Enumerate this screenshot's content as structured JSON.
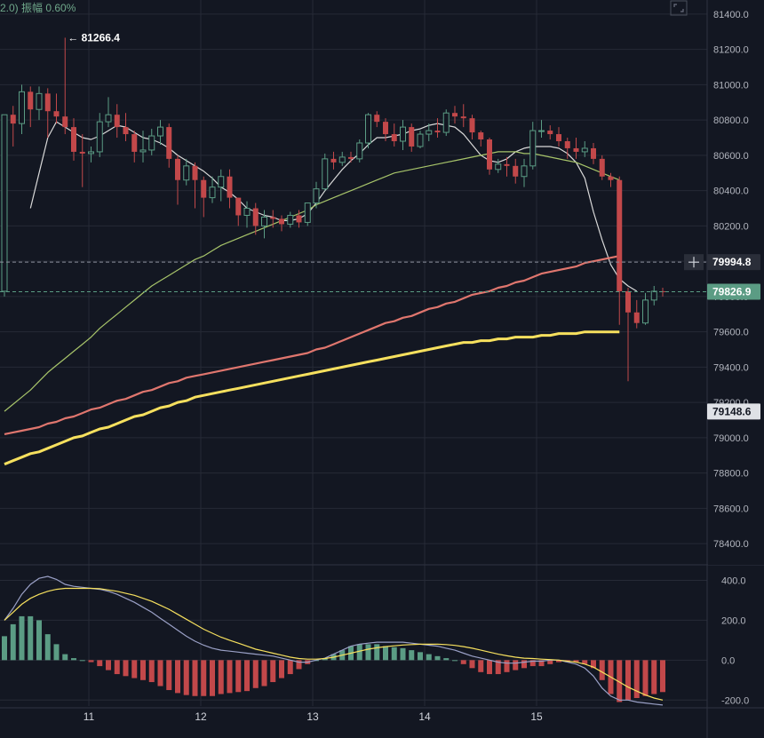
{
  "header": {
    "amplitude_text": "2.0)  振幅 0.60%"
  },
  "colors": {
    "background": "#131722",
    "grid": "#262a36",
    "up": "#5b9c84",
    "down": "#c2484a",
    "ma_white": "#d9d9d9",
    "ma_green": "#a7c46a",
    "ma_pink": "#e0766e",
    "ma_yellow": "#f6e05e",
    "price_tag_green": "#5b9c84",
    "price_tag_dark": "#2a2e39",
    "price_tag_light": "#dfe1e6"
  },
  "icons": {
    "fullscreen": "fullscreen-icon",
    "crosshair": "plus-icon"
  },
  "chart_data": [
    {
      "type": "candlestick",
      "title": "",
      "x_ticks": [
        "11",
        "12",
        "13",
        "14",
        "15"
      ],
      "y_ticks": [
        "81400.0",
        "81200.0",
        "81000.0",
        "80800.0",
        "80600.0",
        "80400.0",
        "80200.0",
        "80000.0",
        "79800.0",
        "79600.0",
        "79400.0",
        "79200.0",
        "79000.0",
        "78800.0",
        "78600.0",
        "78400.0"
      ],
      "ylim": [
        78280,
        81480
      ],
      "max_annotation": {
        "label": "← 81266.4",
        "value": 81266.4
      },
      "price_tags": [
        {
          "label": "79994.8",
          "value": 79994.8,
          "style": "crosshair"
        },
        {
          "label": "79826.9",
          "value": 79826.9,
          "style": "current"
        },
        {
          "label": "79148.6",
          "value": 79148.6,
          "style": "light"
        }
      ],
      "candles": [
        [
          79830,
          80830,
          80830,
          79800
        ],
        [
          80830,
          80780,
          80880,
          80650
        ],
        [
          80780,
          80960,
          81000,
          80720
        ],
        [
          80960,
          80860,
          80990,
          80760
        ],
        [
          80860,
          80950,
          80990,
          80800
        ],
        [
          80950,
          80850,
          80980,
          80700
        ],
        [
          80850,
          80820,
          80950,
          80780
        ],
        [
          80820,
          80760,
          81266.4,
          80720
        ],
        [
          80760,
          80620,
          80810,
          80570
        ],
        [
          80620,
          80610,
          80720,
          80420
        ],
        [
          80610,
          80620,
          80650,
          80560
        ],
        [
          80620,
          80790,
          80840,
          80590
        ],
        [
          80790,
          80830,
          80930,
          80760
        ],
        [
          80830,
          80760,
          80890,
          80700
        ],
        [
          80760,
          80720,
          80840,
          80680
        ],
        [
          80720,
          80620,
          80740,
          80560
        ],
        [
          80620,
          80630,
          80740,
          80560
        ],
        [
          80630,
          80710,
          80750,
          80600
        ],
        [
          80710,
          80760,
          80800,
          80660
        ],
        [
          80760,
          80580,
          80780,
          80530
        ],
        [
          80580,
          80460,
          80600,
          80320
        ],
        [
          80460,
          80540,
          80580,
          80430
        ],
        [
          80540,
          80460,
          80560,
          80300
        ],
        [
          80460,
          80360,
          80480,
          80250
        ],
        [
          80360,
          80420,
          80480,
          80330
        ],
        [
          80420,
          80480,
          80520,
          80340
        ],
        [
          80480,
          80360,
          80520,
          80300
        ],
        [
          80360,
          80260,
          80360,
          80200
        ],
        [
          80260,
          80300,
          80340,
          80190
        ],
        [
          80300,
          80200,
          80330,
          80150
        ],
        [
          80200,
          80250,
          80290,
          80130
        ],
        [
          80250,
          80240,
          80290,
          80190
        ],
        [
          80240,
          80210,
          80260,
          80170
        ],
        [
          80210,
          80260,
          80280,
          80190
        ],
        [
          80260,
          80220,
          80290,
          80190
        ],
        [
          80220,
          80330,
          80330,
          80200
        ],
        [
          80330,
          80410,
          80450,
          80300
        ],
        [
          80410,
          80580,
          80610,
          80400
        ],
        [
          80580,
          80560,
          80620,
          80520
        ],
        [
          80560,
          80590,
          80620,
          80540
        ],
        [
          80590,
          80580,
          80620,
          80560
        ],
        [
          80580,
          80670,
          80690,
          80560
        ],
        [
          80670,
          80830,
          80840,
          80640
        ],
        [
          80830,
          80790,
          80850,
          80760
        ],
        [
          80790,
          80720,
          80810,
          80680
        ],
        [
          80720,
          80680,
          80780,
          80650
        ],
        [
          80680,
          80760,
          80800,
          80630
        ],
        [
          80760,
          80650,
          80780,
          80620
        ],
        [
          80650,
          80720,
          80740,
          80640
        ],
        [
          80720,
          80740,
          80780,
          80680
        ],
        [
          80740,
          80730,
          80810,
          80700
        ],
        [
          80730,
          80840,
          80860,
          80710
        ],
        [
          80840,
          80820,
          80880,
          80780
        ],
        [
          80820,
          80810,
          80890,
          80760
        ],
        [
          80810,
          80730,
          80830,
          80690
        ],
        [
          80730,
          80690,
          80740,
          80650
        ],
        [
          80690,
          80520,
          80700,
          80490
        ],
        [
          80520,
          80550,
          80580,
          80500
        ],
        [
          80550,
          80540,
          80590,
          80480
        ],
        [
          80540,
          80480,
          80580,
          80440
        ],
        [
          80480,
          80540,
          80580,
          80420
        ],
        [
          80540,
          80740,
          80790,
          80520
        ],
        [
          80740,
          80740,
          80800,
          80700
        ],
        [
          80740,
          80720,
          80770,
          80690
        ],
        [
          80720,
          80680,
          80760,
          80650
        ],
        [
          80680,
          80640,
          80700,
          80580
        ],
        [
          80640,
          80620,
          80700,
          80580
        ],
        [
          80620,
          80640,
          80680,
          80590
        ],
        [
          80640,
          80580,
          80670,
          80550
        ],
        [
          80580,
          80480,
          80600,
          80460
        ],
        [
          80480,
          80460,
          80500,
          80420
        ],
        [
          80460,
          79830,
          80480,
          79640
        ],
        [
          79830,
          79710,
          79850,
          79320
        ],
        [
          79710,
          79650,
          79780,
          79620
        ],
        [
          79650,
          79780,
          79820,
          79640
        ],
        [
          79780,
          79830,
          79860,
          79750
        ],
        [
          79830,
          79827,
          79850,
          79800
        ]
      ],
      "series": [
        {
          "color_key": "ma_white",
          "start_index": 3,
          "values": [
            80300,
            80500,
            80700,
            80790,
            80760,
            80730,
            80700,
            80690,
            80710,
            80740,
            80770,
            80760,
            80730,
            80700,
            80690,
            80670,
            80640,
            80600,
            80570,
            80540,
            80510,
            80470,
            80420,
            80390,
            80350,
            80300,
            80280,
            80260,
            80250,
            80230,
            80230,
            80240,
            80270,
            80330,
            80400,
            80460,
            80520,
            80570,
            80610,
            80660,
            80700,
            80700,
            80710,
            80720,
            80740,
            80750,
            80770,
            80780,
            80770,
            80760,
            80720,
            80660,
            80600,
            80570,
            80560,
            80580,
            80620,
            80640,
            80650,
            80650,
            80650,
            80640,
            80610,
            80560,
            80470,
            80280,
            80120,
            79980,
            79900,
            79860,
            79830
          ]
        },
        {
          "color_key": "ma_green",
          "start_index": 0,
          "values": [
            79150,
            79190,
            79230,
            79270,
            79320,
            79370,
            79410,
            79450,
            79490,
            79530,
            79570,
            79620,
            79660,
            79700,
            79740,
            79780,
            79820,
            79860,
            79890,
            79920,
            79950,
            79980,
            80010,
            80030,
            80060,
            80090,
            80110,
            80130,
            80150,
            80170,
            80190,
            80210,
            80230,
            80250,
            80270,
            80290,
            80320,
            80340,
            80360,
            80380,
            80400,
            80420,
            80440,
            80460,
            80480,
            80500,
            80510,
            80520,
            80530,
            80540,
            80550,
            80560,
            80570,
            80580,
            80590,
            80600,
            80610,
            80620,
            80620,
            80620,
            80610,
            80610,
            80600,
            80590,
            80580,
            80570,
            80560,
            80540,
            80520,
            80500,
            80480,
            80460
          ]
        },
        {
          "color_key": "ma_pink",
          "start_index": 0,
          "values": [
            79020,
            79030,
            79040,
            79050,
            79060,
            79080,
            79090,
            79110,
            79120,
            79140,
            79160,
            79170,
            79190,
            79210,
            79220,
            79240,
            79260,
            79270,
            79290,
            79310,
            79320,
            79340,
            79350,
            79360,
            79370,
            79380,
            79390,
            79400,
            79410,
            79420,
            79430,
            79440,
            79450,
            79460,
            79470,
            79480,
            79500,
            79510,
            79530,
            79550,
            79570,
            79590,
            79610,
            79630,
            79650,
            79660,
            79680,
            79690,
            79710,
            79730,
            79740,
            79760,
            79770,
            79790,
            79810,
            79820,
            79830,
            79850,
            79860,
            79880,
            79890,
            79910,
            79930,
            79940,
            79950,
            79960,
            79970,
            79990,
            80000,
            80010,
            80020,
            80030
          ]
        },
        {
          "color_key": "ma_yellow",
          "start_index": 0,
          "values": [
            78850,
            78870,
            78890,
            78910,
            78920,
            78940,
            78960,
            78980,
            79000,
            79010,
            79030,
            79050,
            79060,
            79080,
            79100,
            79120,
            79130,
            79150,
            79170,
            79180,
            79200,
            79210,
            79230,
            79240,
            79250,
            79260,
            79270,
            79280,
            79290,
            79300,
            79310,
            79320,
            79330,
            79340,
            79350,
            79360,
            79370,
            79380,
            79390,
            79400,
            79410,
            79420,
            79430,
            79440,
            79450,
            79460,
            79470,
            79480,
            79490,
            79500,
            79510,
            79520,
            79530,
            79540,
            79540,
            79550,
            79550,
            79560,
            79560,
            79570,
            79570,
            79570,
            79580,
            79580,
            79590,
            79590,
            79590,
            79600,
            79600,
            79600,
            79600,
            79600
          ]
        }
      ]
    },
    {
      "type": "histogram",
      "title": "",
      "y_ticks": [
        "400.0",
        "200.0",
        "0.0",
        "-200.0"
      ],
      "ylim": [
        -230,
        460
      ],
      "histogram": [
        120,
        180,
        220,
        220,
        200,
        130,
        80,
        30,
        10,
        0,
        -10,
        -30,
        -50,
        -70,
        -80,
        -90,
        -100,
        -110,
        -130,
        -150,
        -165,
        -175,
        -180,
        -180,
        -180,
        -170,
        -165,
        -160,
        -155,
        -140,
        -130,
        -110,
        -90,
        -70,
        -45,
        -20,
        0,
        10,
        30,
        50,
        70,
        80,
        80,
        80,
        70,
        65,
        60,
        50,
        40,
        30,
        20,
        10,
        0,
        -20,
        -40,
        -60,
        -70,
        -70,
        -60,
        -50,
        -40,
        -30,
        -30,
        -20,
        -10,
        -10,
        -10,
        -20,
        -40,
        -100,
        -170,
        -210,
        -200,
        -190,
        -180,
        -170,
        -160
      ],
      "series": [
        {
          "color_key": "ma_white",
          "values": [
            200,
            260,
            330,
            380,
            410,
            420,
            405,
            380,
            370,
            365,
            360,
            355,
            345,
            330,
            310,
            290,
            265,
            240,
            210,
            180,
            150,
            120,
            95,
            75,
            60,
            50,
            45,
            40,
            35,
            30,
            25,
            20,
            10,
            0,
            -10,
            -10,
            0,
            10,
            30,
            50,
            70,
            80,
            85,
            90,
            90,
            90,
            90,
            85,
            80,
            75,
            70,
            60,
            50,
            35,
            20,
            10,
            0,
            -10,
            -15,
            -15,
            -10,
            -5,
            -5,
            0,
            0,
            -10,
            -20,
            -40,
            -80,
            -140,
            -180,
            -200,
            -200,
            -210,
            -215,
            -220,
            -225
          ]
        },
        {
          "color_key": "ma_yellow",
          "values": [
            200,
            240,
            280,
            310,
            330,
            345,
            355,
            360,
            360,
            360,
            360,
            358,
            352,
            345,
            335,
            325,
            310,
            295,
            275,
            255,
            230,
            205,
            180,
            155,
            135,
            115,
            100,
            85,
            70,
            55,
            45,
            35,
            25,
            15,
            8,
            5,
            5,
            8,
            15,
            25,
            35,
            45,
            55,
            62,
            68,
            72,
            76,
            78,
            80,
            80,
            80,
            78,
            74,
            68,
            60,
            50,
            40,
            30,
            22,
            15,
            10,
            8,
            5,
            3,
            0,
            -5,
            -10,
            -20,
            -35,
            -60,
            -85,
            -110,
            -135,
            -155,
            -175,
            -190,
            -200
          ]
        }
      ]
    }
  ]
}
